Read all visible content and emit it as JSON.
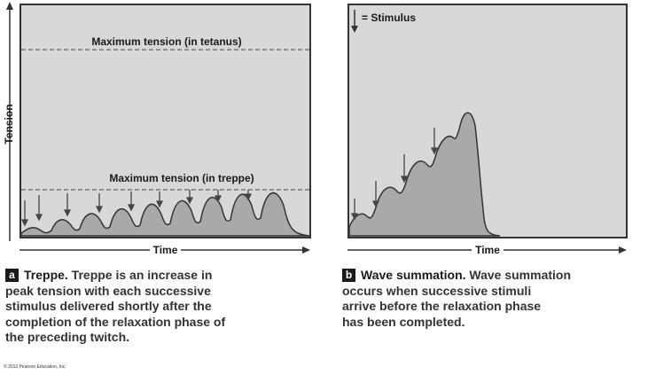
{
  "panel_a": {
    "label_tetanus": "Maximum tension (in tetanus)",
    "label_treppe": "Maximum tension (in treppe)",
    "y_axis_label": "Tension",
    "x_axis_label": "Time"
  },
  "panel_b": {
    "legend_label": "= Stimulus",
    "x_axis_label": "Time"
  },
  "caption_a": {
    "badge": "a",
    "title": "Treppe.",
    "lines": [
      " Treppe is an increase in",
      "peak tension with each successive",
      "stimulus delivered shortly after the",
      "completion of the relaxation phase of",
      "the preceding twitch."
    ]
  },
  "caption_b": {
    "badge": "b",
    "title": "Wave summation.",
    "lines": [
      " Wave summation",
      "occurs when successive stimuli",
      "arrive before the relaxation phase",
      "has been completed."
    ]
  },
  "copyright": "© 2013 Pearson Education, Inc.",
  "colors": {
    "panel_bg": "#d8d8d8",
    "curve_fill": "#a9a9a9",
    "line": "#333333"
  }
}
